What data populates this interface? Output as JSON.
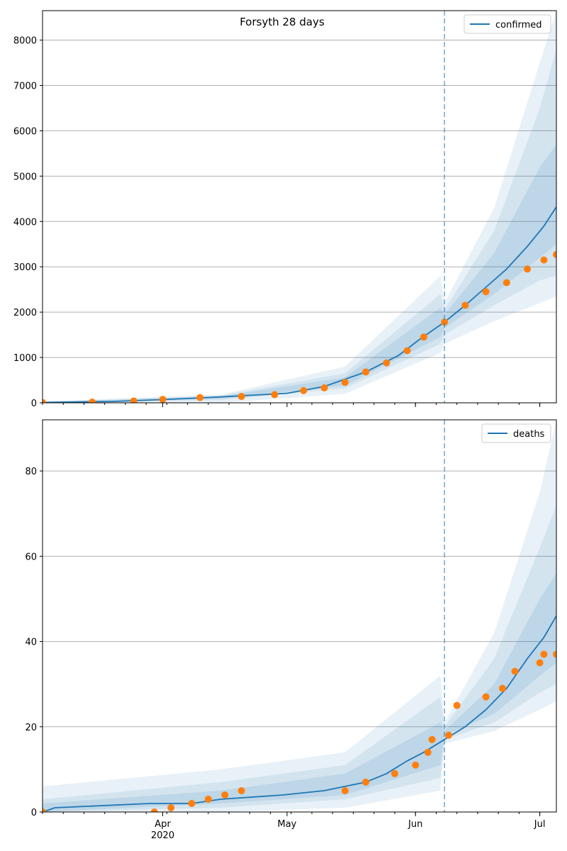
{
  "chart_data": [
    {
      "type": "line",
      "title": "Forsyth 28 days",
      "xlabel": "",
      "ylabel": "",
      "x_start": "2020-03-03",
      "x_end": "2020-07-05",
      "forecast_start": "2020-06-08",
      "ylim": [
        0,
        8650
      ],
      "y_ticks": [
        0,
        1000,
        2000,
        3000,
        4000,
        5000,
        6000,
        7000,
        8000
      ],
      "grid": "y",
      "legend": {
        "position": "top-right",
        "entries": [
          "confirmed"
        ]
      },
      "series": [
        {
          "name": "confirmed",
          "style": "line",
          "color": "#1f77b4",
          "points": [
            [
              "2020-03-03",
              10
            ],
            [
              "2020-03-20",
              30
            ],
            [
              "2020-04-01",
              70
            ],
            [
              "2020-04-15",
              130
            ],
            [
              "2020-05-01",
              210
            ],
            [
              "2020-05-10",
              360
            ],
            [
              "2020-05-20",
              680
            ],
            [
              "2020-05-28",
              1050
            ],
            [
              "2020-06-02",
              1400
            ],
            [
              "2020-06-08",
              1780
            ],
            [
              "2020-06-13",
              2150
            ],
            [
              "2020-06-18",
              2550
            ],
            [
              "2020-06-23",
              2950
            ],
            [
              "2020-06-28",
              3450
            ],
            [
              "2020-07-02",
              3900
            ],
            [
              "2020-07-05",
              4320
            ]
          ]
        },
        {
          "name": "observed",
          "style": "markers",
          "color": "#ff7f0e",
          "points": [
            [
              "2020-03-03",
              5
            ],
            [
              "2020-03-15",
              15
            ],
            [
              "2020-03-25",
              40
            ],
            [
              "2020-04-01",
              75
            ],
            [
              "2020-04-10",
              115
            ],
            [
              "2020-04-20",
              140
            ],
            [
              "2020-04-28",
              180
            ],
            [
              "2020-05-05",
              270
            ],
            [
              "2020-05-10",
              330
            ],
            [
              "2020-05-15",
              450
            ],
            [
              "2020-05-20",
              680
            ],
            [
              "2020-05-25",
              880
            ],
            [
              "2020-05-30",
              1150
            ],
            [
              "2020-06-03",
              1450
            ],
            [
              "2020-06-08",
              1780
            ],
            [
              "2020-06-13",
              2150
            ],
            [
              "2020-06-18",
              2450
            ],
            [
              "2020-06-23",
              2650
            ],
            [
              "2020-06-28",
              2950
            ],
            [
              "2020-07-02",
              3150
            ],
            [
              "2020-07-05",
              3270
            ]
          ]
        }
      ],
      "bands": [
        {
          "level": "outer",
          "color": "#1f77b4",
          "opacity": 0.1,
          "points": [
            [
              "2020-03-03",
              0,
              30
            ],
            [
              "2020-04-15",
              0,
              180
            ],
            [
              "2020-05-15",
              200,
              800
            ],
            [
              "2020-06-07",
              1100,
              2800
            ],
            [
              "2020-06-08",
              1300,
              2200
            ],
            [
              "2020-06-20",
              1800,
              4300
            ],
            [
              "2020-07-01",
              2200,
              7500
            ],
            [
              "2020-07-05",
              2350,
              8650
            ]
          ]
        },
        {
          "level": "middle",
          "color": "#1f77b4",
          "opacity": 0.1,
          "points": [
            [
              "2020-03-03",
              2,
              20
            ],
            [
              "2020-04-15",
              60,
              160
            ],
            [
              "2020-05-15",
              320,
              650
            ],
            [
              "2020-06-07",
              1300,
              2400
            ],
            [
              "2020-06-08",
              1500,
              2050
            ],
            [
              "2020-06-20",
              2150,
              3800
            ],
            [
              "2020-07-01",
              2700,
              6500
            ],
            [
              "2020-07-05",
              2800,
              7800
            ]
          ]
        },
        {
          "level": "inner",
          "color": "#1f77b4",
          "opacity": 0.12,
          "points": [
            [
              "2020-03-03",
              5,
              15
            ],
            [
              "2020-04-15",
              90,
              140
            ],
            [
              "2020-05-15",
              380,
              560
            ],
            [
              "2020-06-07",
              1450,
              2100
            ],
            [
              "2020-06-08",
              1650,
              1950
            ],
            [
              "2020-06-20",
              2400,
              3300
            ],
            [
              "2020-07-01",
              3200,
              5200
            ],
            [
              "2020-07-05",
              3500,
              5700
            ]
          ]
        }
      ]
    },
    {
      "type": "line",
      "title": "",
      "xlabel": "",
      "ylabel": "",
      "x_start": "2020-03-03",
      "x_end": "2020-07-05",
      "forecast_start": "2020-06-08",
      "ylim": [
        0,
        92
      ],
      "y_ticks": [
        0,
        20,
        40,
        60,
        80
      ],
      "x_ticks": [
        "Apr",
        "May",
        "Jun",
        "Jul"
      ],
      "x_tick_dates": [
        "2020-04-01",
        "2020-05-01",
        "2020-06-01",
        "2020-07-01"
      ],
      "x_year_label": "2020",
      "grid": "y",
      "legend": {
        "position": "top-right",
        "entries": [
          "deaths"
        ]
      },
      "series": [
        {
          "name": "deaths",
          "style": "line",
          "color": "#1f77b4",
          "points": [
            [
              "2020-03-03",
              0
            ],
            [
              "2020-03-06",
              1
            ],
            [
              "2020-03-29",
              2
            ],
            [
              "2020-04-08",
              2
            ],
            [
              "2020-04-15",
              3
            ],
            [
              "2020-04-30",
              4
            ],
            [
              "2020-05-10",
              5
            ],
            [
              "2020-05-15",
              6
            ],
            [
              "2020-05-20",
              7
            ],
            [
              "2020-05-25",
              9
            ],
            [
              "2020-05-30",
              12
            ],
            [
              "2020-06-03",
              14
            ],
            [
              "2020-06-08",
              17
            ],
            [
              "2020-06-13",
              20
            ],
            [
              "2020-06-18",
              24
            ],
            [
              "2020-06-23",
              29
            ],
            [
              "2020-06-28",
              36
            ],
            [
              "2020-07-02",
              41
            ],
            [
              "2020-07-05",
              46
            ]
          ]
        },
        {
          "name": "observed",
          "style": "markers",
          "color": "#ff7f0e",
          "points": [
            [
              "2020-03-03",
              0
            ],
            [
              "2020-03-30",
              0
            ],
            [
              "2020-04-03",
              1
            ],
            [
              "2020-04-08",
              2
            ],
            [
              "2020-04-12",
              3
            ],
            [
              "2020-04-16",
              4
            ],
            [
              "2020-04-20",
              5
            ],
            [
              "2020-05-15",
              5
            ],
            [
              "2020-05-20",
              7
            ],
            [
              "2020-05-27",
              9
            ],
            [
              "2020-06-01",
              11
            ],
            [
              "2020-06-04",
              14
            ],
            [
              "2020-06-05",
              17
            ],
            [
              "2020-06-09",
              18
            ],
            [
              "2020-06-11",
              25
            ],
            [
              "2020-06-18",
              27
            ],
            [
              "2020-06-22",
              29
            ],
            [
              "2020-06-25",
              33
            ],
            [
              "2020-07-01",
              35
            ],
            [
              "2020-07-02",
              37
            ],
            [
              "2020-07-05",
              37
            ]
          ]
        }
      ],
      "bands": [
        {
          "level": "outer",
          "color": "#1f77b4",
          "opacity": 0.1,
          "points": [
            [
              "2020-03-03",
              0,
              6
            ],
            [
              "2020-04-15",
              0,
              10
            ],
            [
              "2020-05-15",
              1,
              14
            ],
            [
              "2020-06-07",
              5,
              32
            ],
            [
              "2020-06-08",
              16,
              21
            ],
            [
              "2020-06-20",
              19,
              42
            ],
            [
              "2020-07-01",
              24,
              75
            ],
            [
              "2020-07-05",
              26,
              92
            ]
          ]
        },
        {
          "level": "middle",
          "color": "#1f77b4",
          "opacity": 0.1,
          "points": [
            [
              "2020-03-03",
              0,
              3
            ],
            [
              "2020-04-15",
              1,
              7
            ],
            [
              "2020-05-15",
              3,
              11
            ],
            [
              "2020-06-07",
              8,
              27
            ],
            [
              "2020-06-08",
              17,
              20
            ],
            [
              "2020-06-20",
              21,
              36
            ],
            [
              "2020-07-01",
              28,
              62
            ],
            [
              "2020-07-05",
              30,
              72
            ]
          ]
        },
        {
          "level": "inner",
          "color": "#1f77b4",
          "opacity": 0.12,
          "points": [
            [
              "2020-03-03",
              0,
              2
            ],
            [
              "2020-04-15",
              2,
              5
            ],
            [
              "2020-05-15",
              4,
              9
            ],
            [
              "2020-06-07",
              11,
              21
            ],
            [
              "2020-06-08",
              18,
              19
            ],
            [
              "2020-06-20",
              23,
              30
            ],
            [
              "2020-07-01",
              32,
              50
            ],
            [
              "2020-07-05",
              35,
              56
            ]
          ]
        }
      ]
    }
  ]
}
